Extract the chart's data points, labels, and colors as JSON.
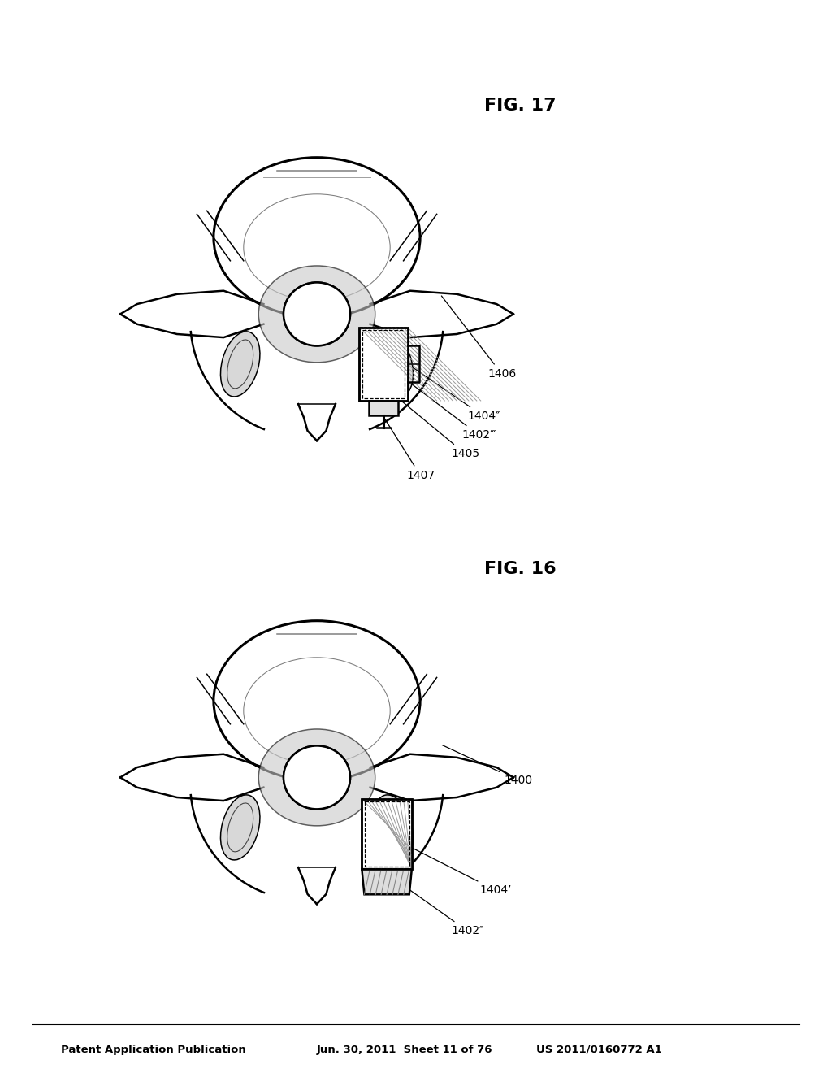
{
  "background_color": "#ffffff",
  "header_left": "Patent Application Publication",
  "header_center": "Jun. 30, 2011  Sheet 11 of 76",
  "header_right": "US 2011/0160772 A1",
  "fig16_label": "FIG. 16",
  "fig17_label": "FIG. 17",
  "text_color": "#000000",
  "line_color": "#000000"
}
